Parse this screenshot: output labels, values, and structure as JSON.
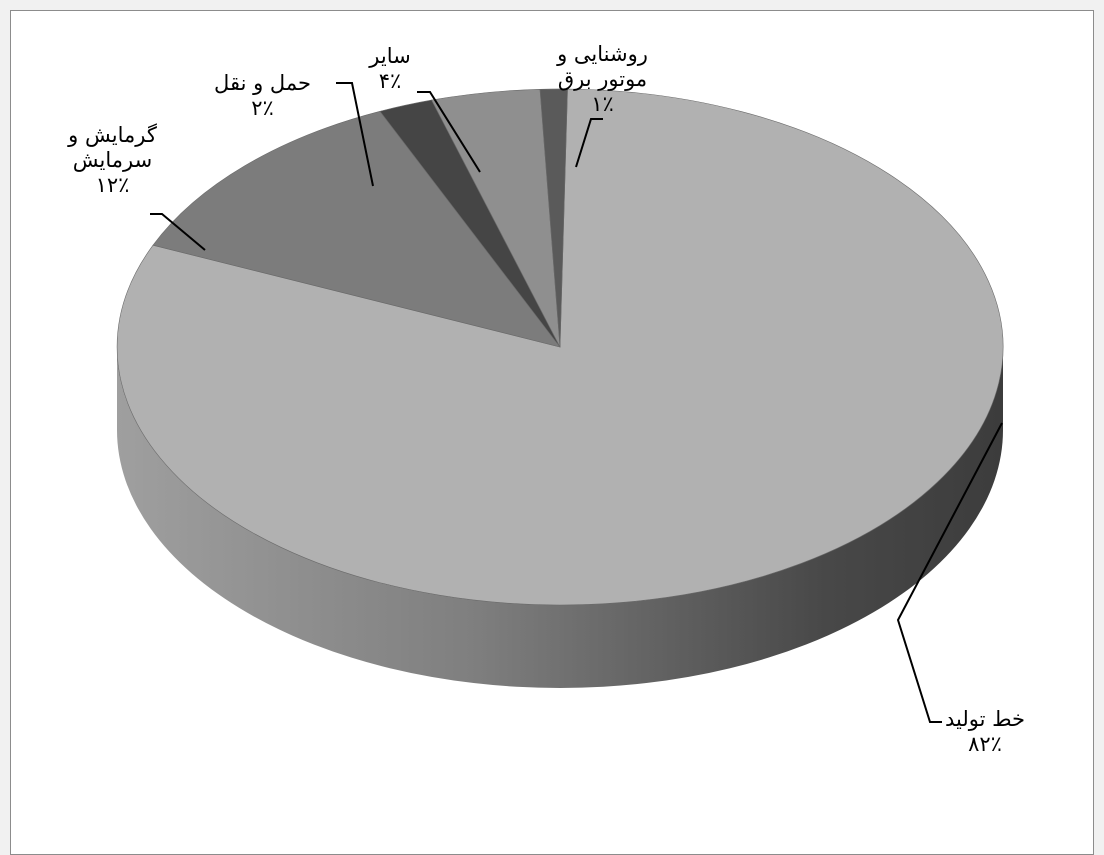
{
  "chart_data": {
    "type": "pie",
    "slices": [
      {
        "label": "خط تولید",
        "value": 82,
        "value_label": "۸۲٪",
        "color": "#b1b1b1",
        "side": "#9a9a9a"
      },
      {
        "label": "گرمایش و سرمایش",
        "line1": "گرمایش و",
        "line2": "سرمایش",
        "value": 12,
        "value_label": "۱۲٪",
        "color": "#7c7c7c",
        "side": "#5f5f5f"
      },
      {
        "label": "حمل و نقل",
        "value": 2,
        "value_label": "۲٪",
        "color": "#454545",
        "side": "#333333"
      },
      {
        "label": "سایر",
        "value": 4,
        "value_label": "۴٪",
        "color": "#8f8f8f",
        "side": "#707070"
      },
      {
        "label": "روشنایی و موتور برق",
        "line1": "روشنایی و",
        "line2": "موتور برق",
        "value": 1,
        "value_label": "۱٪",
        "color": "#5a5a5a",
        "side": "#404040"
      }
    ],
    "style": "3d-pie",
    "legend": "none",
    "data_labels": "outside-with-leader-lines"
  }
}
